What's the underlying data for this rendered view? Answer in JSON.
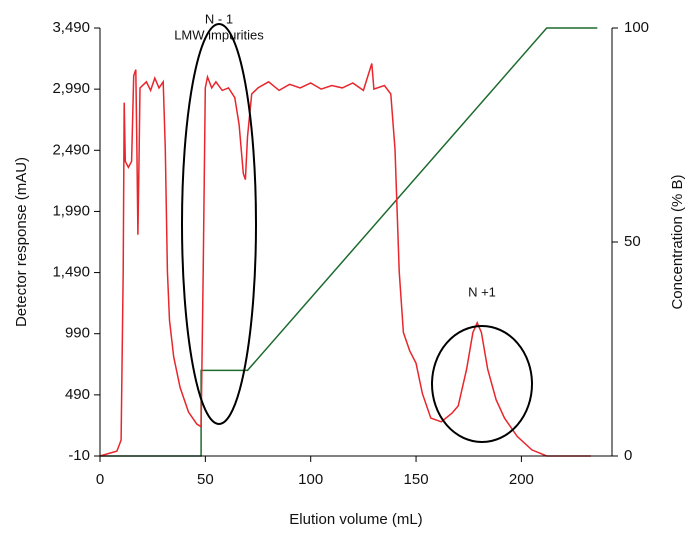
{
  "chart_data": {
    "type": "line",
    "xlabel": "Elution volume (mL)",
    "ylabel": "Detector response (mAU)",
    "y2label": "Concentration (% B)",
    "annotations": [
      "N - 1",
      "LMW impurities",
      "N +1"
    ],
    "xlim": [
      0,
      243
    ],
    "xticks": [
      0,
      50,
      100,
      150,
      200
    ],
    "ylim": [
      -10,
      3490
    ],
    "yticks": [
      -10,
      490,
      990,
      {
        "value": 1490,
        "label": "1,490"
      },
      {
        "value": 1990,
        "label": "1,990"
      },
      {
        "value": 2490,
        "label": "2,490"
      },
      {
        "value": 2990,
        "label": "2,990"
      },
      {
        "value": 3490,
        "label": "3,490"
      }
    ],
    "y2lim": [
      0,
      100
    ],
    "y2ticks": [
      0,
      50,
      100
    ],
    "series": [
      {
        "color": "#e8262c",
        "x": [
          0,
          8,
          10,
          11,
          11.5,
          12,
          13.5,
          15,
          16,
          17,
          17.5,
          18,
          18.5,
          19,
          22,
          24,
          26,
          28,
          30,
          31,
          32,
          33,
          35,
          38,
          42,
          46,
          48,
          49,
          50,
          51,
          53,
          55,
          58,
          61,
          64,
          66,
          68,
          69,
          70,
          72,
          75,
          80,
          85,
          90,
          95,
          100,
          105,
          110,
          115,
          120,
          125,
          129,
          130,
          135,
          138,
          140,
          142,
          144,
          147,
          150,
          153,
          157,
          162,
          167,
          170,
          174,
          177,
          179,
          181,
          184,
          188,
          192,
          198,
          205,
          212,
          233
        ],
        "values": [
          -10,
          30,
          120,
          1500,
          2880,
          2400,
          2350,
          2400,
          3100,
          3150,
          2500,
          1800,
          2400,
          3000,
          3050,
          2980,
          3080,
          3000,
          3050,
          2500,
          1500,
          1100,
          800,
          550,
          350,
          250,
          230,
          1500,
          3000,
          3090,
          3000,
          3050,
          2980,
          3000,
          2920,
          2700,
          2300,
          2250,
          2600,
          2950,
          3000,
          3050,
          2980,
          3030,
          3000,
          3040,
          2990,
          3020,
          3000,
          3040,
          2980,
          3200,
          2990,
          3020,
          2950,
          2500,
          1500,
          1000,
          850,
          750,
          500,
          300,
          270,
          340,
          400,
          700,
          1000,
          1080,
          1000,
          700,
          450,
          300,
          150,
          40,
          -10,
          -10
        ]
      },
      {
        "color": "#1e6b2e",
        "axis": "y2",
        "x": [
          0,
          48,
          48,
          70,
          212,
          236
        ],
        "values": [
          0,
          0,
          20,
          20,
          100,
          100
        ]
      }
    ]
  }
}
